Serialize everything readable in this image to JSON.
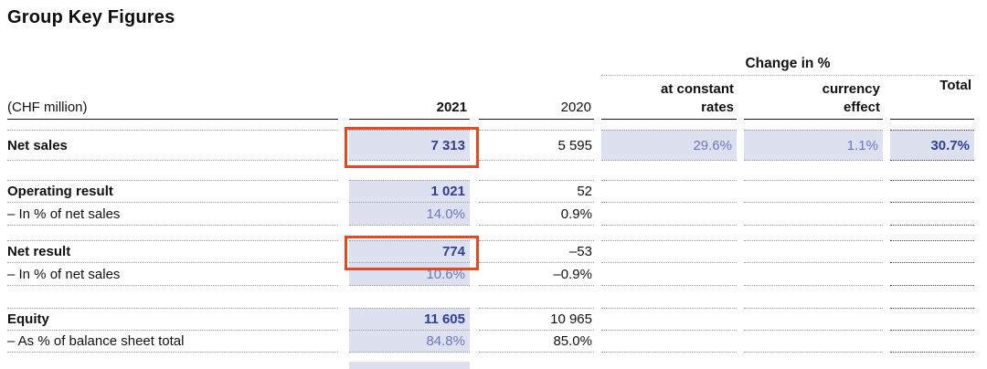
{
  "title": "Group Key Figures",
  "colors": {
    "accent_navy": "#2f3e94",
    "accent_blue": "#6d78b8",
    "highlight_bg": "#dce0ef",
    "callout_red": "#e8481f",
    "text": "#111111"
  },
  "table": {
    "unit_label": "(CHF million)",
    "change_header": "Change in %",
    "columns": {
      "y2021": "2021",
      "y2020": "2020",
      "rates_line1": "at constant",
      "rates_line2": "rates",
      "currency_line1": "currency",
      "currency_line2": "effect",
      "total": "Total"
    },
    "groups": [
      {
        "rows": [
          {
            "label": "Net sales",
            "y2021": "7 313",
            "y2020": "5 595",
            "rates": "29.6%",
            "currency": "1.1%",
            "total": "30.7%"
          }
        ]
      },
      {
        "rows": [
          {
            "label": "Operating result",
            "y2021": "1 021",
            "y2020": "52"
          },
          {
            "label": "– In % of net sales",
            "y2021": "14.0%",
            "y2020": "0.9%"
          }
        ]
      },
      {
        "rows": [
          {
            "label": "Net result",
            "y2021": "774",
            "y2020": "–53"
          },
          {
            "label": "– In % of net sales",
            "y2021": "10.6%",
            "y2020": "–0.9%"
          }
        ]
      },
      {
        "rows": [
          {
            "label": "Equity",
            "y2021": "11 605",
            "y2020": "10 965"
          },
          {
            "label": "– As % of balance sheet total",
            "y2021": "84.8%",
            "y2020": "85.0%"
          }
        ]
      }
    ]
  },
  "annotations": {
    "highlight_boxes": [
      "net-sales-2021-value",
      "net-result-2021-value"
    ]
  }
}
